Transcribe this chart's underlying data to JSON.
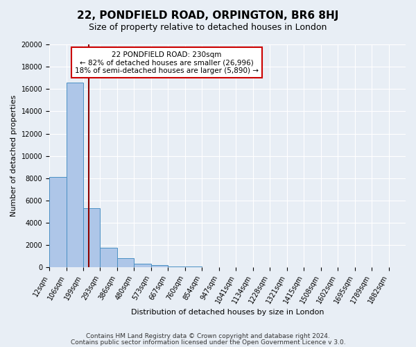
{
  "title": "22, PONDFIELD ROAD, ORPINGTON, BR6 8HJ",
  "subtitle": "Size of property relative to detached houses in London",
  "xlabel": "Distribution of detached houses by size in London",
  "ylabel": "Number of detached properties",
  "bin_labels": [
    "12sqm",
    "106sqm",
    "199sqm",
    "293sqm",
    "386sqm",
    "480sqm",
    "573sqm",
    "667sqm",
    "760sqm",
    "854sqm",
    "947sqm",
    "1041sqm",
    "1134sqm",
    "1228sqm",
    "1321sqm",
    "1415sqm",
    "1508sqm",
    "1602sqm",
    "1695sqm",
    "1789sqm",
    "1882sqm"
  ],
  "bar_values": [
    8100,
    16600,
    5300,
    1750,
    800,
    300,
    200,
    100,
    100,
    50,
    0,
    0,
    0,
    0,
    0,
    0,
    0,
    0,
    0,
    0,
    0
  ],
  "bar_color": "#aec6e8",
  "bar_edge_color": "#4a90c4",
  "vline_color": "#8b0000",
  "annotation_title": "22 PONDFIELD ROAD: 230sqm",
  "annotation_line1": "← 82% of detached houses are smaller (26,996)",
  "annotation_line2": "18% of semi-detached houses are larger (5,890) →",
  "annotation_box_color": "#ffffff",
  "annotation_box_edge": "#cc0000",
  "ylim": [
    0,
    20000
  ],
  "yticks": [
    0,
    2000,
    4000,
    6000,
    8000,
    10000,
    12000,
    14000,
    16000,
    18000,
    20000
  ],
  "footer_line1": "Contains HM Land Registry data © Crown copyright and database right 2024.",
  "footer_line2": "Contains public sector information licensed under the Open Government Licence v 3.0.",
  "bg_color": "#e8eef5",
  "plot_bg_color": "#e8eef5",
  "title_fontsize": 11,
  "subtitle_fontsize": 9,
  "axis_label_fontsize": 8,
  "tick_fontsize": 7,
  "footer_fontsize": 6.5
}
